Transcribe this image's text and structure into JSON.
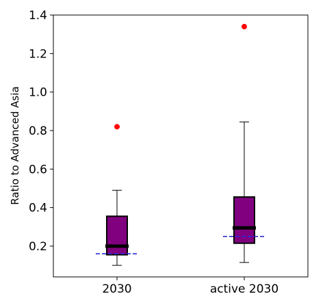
{
  "chart_data": {
    "type": "box",
    "title": "",
    "xlabel": "",
    "ylabel": "Ratio to Advanced Asia",
    "ylim": [
      0.04,
      1.4
    ],
    "yticks": [
      0.2,
      0.4,
      0.6,
      0.8,
      1.0,
      1.2,
      1.4
    ],
    "ytick_labels": [
      "0.2",
      "0.4",
      "0.6",
      "0.8",
      "1.0",
      "1.2",
      "1.4"
    ],
    "categories": [
      "2030",
      "active 2030"
    ],
    "boxes": [
      {
        "category": "2030",
        "whisker_low": 0.1,
        "q1": 0.155,
        "median": 0.2,
        "q3": 0.355,
        "whisker_high": 0.49,
        "mean": 0.16,
        "outliers": [
          0.82
        ]
      },
      {
        "category": "active 2030",
        "whisker_low": 0.115,
        "q1": 0.215,
        "median": 0.295,
        "q3": 0.455,
        "whisker_high": 0.845,
        "mean": 0.25,
        "outliers": [
          1.34
        ]
      }
    ],
    "colors": {
      "box_fill": "#800080",
      "median": "#000000",
      "mean_line": "#2b2bd9",
      "outlier": "#ff0000"
    },
    "grid": false
  }
}
